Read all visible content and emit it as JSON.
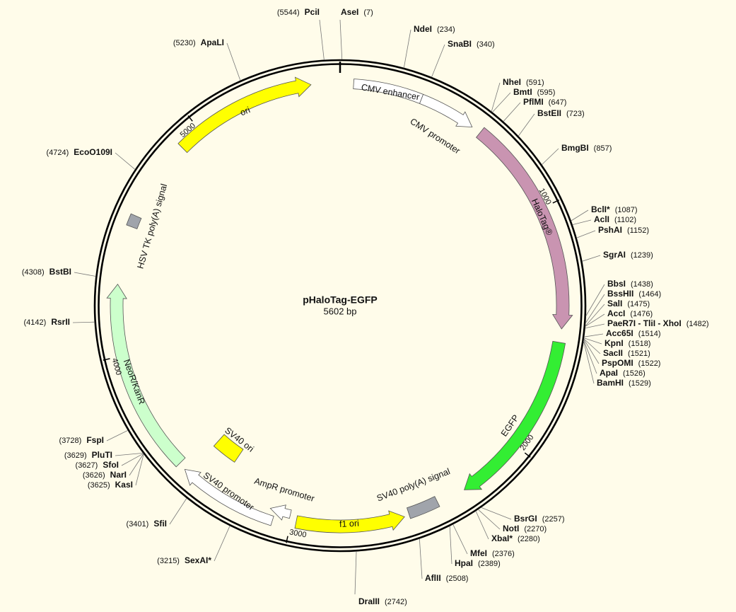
{
  "title": "pHaloTag-EGFP",
  "subtitle": "5602 bp",
  "features": [
    {
      "label": "ori",
      "color": "#ffff00"
    },
    {
      "label": "CMV enhancer",
      "color": "#ffffff"
    },
    {
      "label": "CMV promoter",
      "color": "#ffffff"
    },
    {
      "label": "HaloTag®",
      "color": "#c994b1"
    },
    {
      "label": "EGFP",
      "color": "#33ee33"
    },
    {
      "label": "SV40 poly(A) signal",
      "color": "#a0a4ab"
    },
    {
      "label": "f1 ori",
      "color": "#ffff00"
    },
    {
      "label": "AmpR promoter",
      "color": "#ffffff"
    },
    {
      "label": "SV40 promoter",
      "color": "#ffffff"
    },
    {
      "label": "SV40 ori",
      "color": "#ffff00"
    },
    {
      "label": "NeoR/KanR",
      "color": "#ccffcc"
    },
    {
      "label": "HSV TK poly(A) signal",
      "color": "#a0a4ab"
    }
  ],
  "ticks": [
    1000,
    2000,
    3000,
    4000,
    5000
  ],
  "sites": [
    {
      "name": "PciI",
      "position": "(5544)"
    },
    {
      "name": "AseI",
      "position": "(7)"
    },
    {
      "name": "NdeI",
      "position": "(234)"
    },
    {
      "name": "SnaBI",
      "position": "(340)"
    },
    {
      "name": "ApaLI",
      "position": "(5230)"
    },
    {
      "name": "NheI",
      "position": "(591)"
    },
    {
      "name": "BmtI",
      "position": "(595)"
    },
    {
      "name": "PflMI",
      "position": "(647)"
    },
    {
      "name": "BstEII",
      "position": "(723)"
    },
    {
      "name": "BmgBI",
      "position": "(857)"
    },
    {
      "name": "BclI*",
      "position": "(1087)",
      "color": "#888888"
    },
    {
      "name": "AclI",
      "position": "(1102)"
    },
    {
      "name": "PshAI",
      "position": "(1152)"
    },
    {
      "name": "SgrAI",
      "position": "(1239)"
    },
    {
      "name": "BbsI",
      "position": "(1438)"
    },
    {
      "name": "BssHII",
      "position": "(1464)"
    },
    {
      "name": "SalI",
      "position": "(1475)"
    },
    {
      "name": "AccI",
      "position": "(1476)"
    },
    {
      "name": "PaeR7I - TliI - XhoI",
      "position": "(1482)"
    },
    {
      "name": "Acc65I",
      "position": "(1514)"
    },
    {
      "name": "KpnI",
      "position": "(1518)"
    },
    {
      "name": "SacII",
      "position": "(1521)"
    },
    {
      "name": "PspOMI",
      "position": "(1522)"
    },
    {
      "name": "ApaI",
      "position": "(1526)"
    },
    {
      "name": "BamHI",
      "position": "(1529)"
    },
    {
      "name": "BsrGI",
      "position": "(2257)"
    },
    {
      "name": "NotI",
      "position": "(2270)"
    },
    {
      "name": "XbaI*",
      "position": "(2280)",
      "color": "#888888"
    },
    {
      "name": "MfeI",
      "position": "(2376)"
    },
    {
      "name": "HpaI",
      "position": "(2389)"
    },
    {
      "name": "AflII",
      "position": "(2508)"
    },
    {
      "name": "DraIII",
      "position": "(2742)"
    },
    {
      "name": "SexAI*",
      "position": "(3215)",
      "color": "#888888"
    },
    {
      "name": "SfiI",
      "position": "(3401)"
    },
    {
      "name": "FspI",
      "position": "(3728)"
    },
    {
      "name": "PluTI",
      "position": "(3629)"
    },
    {
      "name": "SfoI",
      "position": "(3627)"
    },
    {
      "name": "NarI",
      "position": "(3626)"
    },
    {
      "name": "KasI",
      "position": "(3625)"
    },
    {
      "name": "RsrII",
      "position": "(4142)"
    },
    {
      "name": "BstBI",
      "position": "(4308)"
    },
    {
      "name": "EcoO109I",
      "position": "(4724)"
    }
  ]
}
